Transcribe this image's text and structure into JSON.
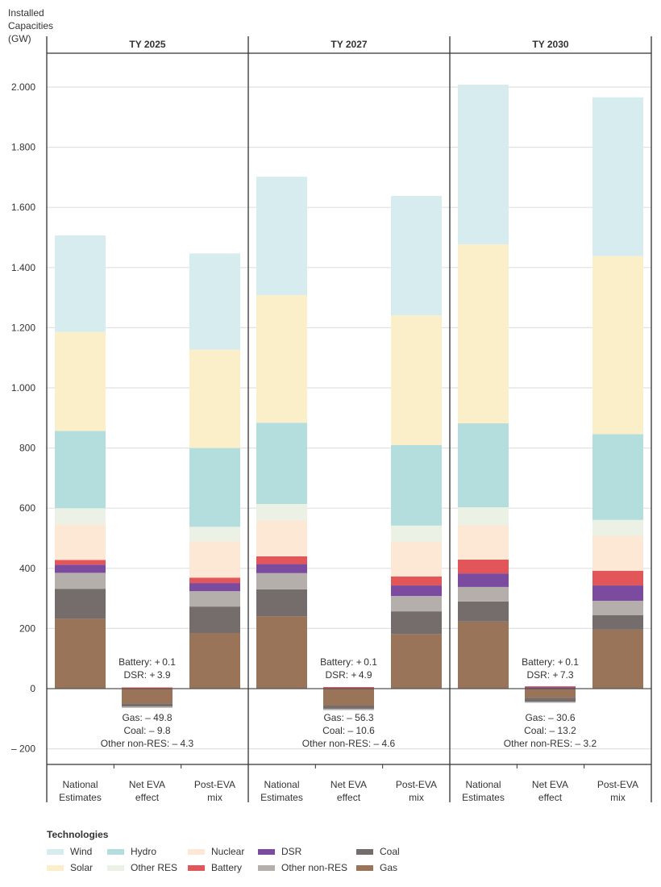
{
  "chart_data": {
    "type": "bar",
    "stacked": true,
    "ylabel": "Installed Capacities (GW)",
    "ylim": [
      -250,
      2100
    ],
    "yticks": [
      -200,
      0,
      200,
      400,
      600,
      800,
      1000,
      1200,
      1400,
      1600,
      1800,
      2000
    ],
    "ytick_labels": [
      "– 200",
      "0",
      "200",
      "400",
      "600",
      "800",
      "1.000",
      "1.200",
      "1.400",
      "1.600",
      "1.800",
      "2.000"
    ],
    "grid": true,
    "panels": [
      "TY 2025",
      "TY 2027",
      "TY 2030"
    ],
    "categories": [
      "National Estimates",
      "Net EVA effect",
      "Post-EVA mix"
    ],
    "category_labels": [
      [
        "National",
        "Estimates"
      ],
      [
        "Net EVA",
        "effect"
      ],
      [
        "Post-EVA",
        "mix"
      ]
    ],
    "technologies": [
      "Gas",
      "Coal",
      "Other non-RES",
      "DSR",
      "Battery",
      "Nuclear",
      "Other RES",
      "Hydro",
      "Solar",
      "Wind"
    ],
    "colors": {
      "Wind": "#d7ecee",
      "Solar": "#fbefca",
      "Hydro": "#b3dedd",
      "Other RES": "#ebf1e5",
      "Nuclear": "#fde8d6",
      "Battery": "#e25558",
      "DSR": "#7a4b9e",
      "Other non-RES": "#b5afab",
      "Coal": "#746d6b",
      "Gas": "#9a7459"
    },
    "series": [
      {
        "panel": "TY 2025",
        "category": "National Estimates",
        "values": {
          "Gas": 233,
          "Coal": 99,
          "Other non-RES": 53,
          "DSR": 27,
          "Battery": 16,
          "Nuclear": 118,
          "Other RES": 54,
          "Hydro": 257,
          "Solar": 329,
          "Wind": 321
        }
      },
      {
        "panel": "TY 2025",
        "category": "Net EVA effect",
        "values": {
          "Gas": -49.8,
          "Coal": -9.8,
          "Other non-RES": -4.3,
          "DSR": 3.9,
          "Battery": 0.1
        }
      },
      {
        "panel": "TY 2025",
        "category": "Post-EVA mix",
        "values": {
          "Gas": 185,
          "Coal": 88,
          "Other non-RES": 51,
          "DSR": 27,
          "Battery": 18,
          "Nuclear": 121,
          "Other RES": 48,
          "Hydro": 262,
          "Solar": 327,
          "Wind": 320
        }
      },
      {
        "panel": "TY 2027",
        "category": "National Estimates",
        "values": {
          "Gas": 241,
          "Coal": 89,
          "Other non-RES": 54,
          "DSR": 30,
          "Battery": 26,
          "Nuclear": 119,
          "Other RES": 55,
          "Hydro": 270,
          "Solar": 424,
          "Wind": 394
        }
      },
      {
        "panel": "TY 2027",
        "category": "Net EVA effect",
        "values": {
          "Gas": -56.3,
          "Coal": -10.6,
          "Other non-RES": -4.6,
          "DSR": 4.9,
          "Battery": 0.1
        }
      },
      {
        "panel": "TY 2027",
        "category": "Post-EVA mix",
        "values": {
          "Gas": 182,
          "Coal": 75,
          "Other non-RES": 51,
          "DSR": 35,
          "Battery": 30,
          "Nuclear": 115,
          "Other RES": 54,
          "Hydro": 268,
          "Solar": 431,
          "Wind": 397
        }
      },
      {
        "panel": "TY 2030",
        "category": "National Estimates",
        "values": {
          "Gas": 223,
          "Coal": 67,
          "Other non-RES": 48,
          "DSR": 45,
          "Battery": 46,
          "Nuclear": 115,
          "Other RES": 59,
          "Hydro": 279,
          "Solar": 595,
          "Wind": 531
        }
      },
      {
        "panel": "TY 2030",
        "category": "Net EVA effect",
        "values": {
          "Gas": -30.6,
          "Coal": -13.2,
          "Other non-RES": -3.2,
          "DSR": 7.3,
          "Battery": 0.1
        }
      },
      {
        "panel": "TY 2030",
        "category": "Post-EVA mix",
        "values": {
          "Gas": 196,
          "Coal": 48,
          "Other non-RES": 48,
          "DSR": 51,
          "Battery": 49,
          "Nuclear": 116,
          "Other RES": 53,
          "Hydro": 285,
          "Solar": 592,
          "Wind": 528
        }
      }
    ],
    "annotations": [
      {
        "panel": "TY 2025",
        "positive": [
          "Battery: + 0.1",
          "DSR: + 3.9"
        ],
        "negative": [
          "Gas: – 49.8",
          "Coal: – 9.8",
          "Other non-RES: – 4.3"
        ]
      },
      {
        "panel": "TY 2027",
        "positive": [
          "Battery: + 0.1",
          "DSR: + 4.9"
        ],
        "negative": [
          "Gas: – 56.3",
          "Coal: – 10.6",
          "Other non-RES: – 4.6"
        ]
      },
      {
        "panel": "TY 2030",
        "positive": [
          "Battery: + 0.1",
          "DSR: + 7.3"
        ],
        "negative": [
          "Gas: – 30.6",
          "Coal: – 13.2",
          "Other non-RES: – 3.2"
        ]
      }
    ],
    "legend": {
      "title": "Technologies",
      "position": "bottom",
      "items": [
        "Wind",
        "Hydro",
        "Nuclear",
        "DSR",
        "Coal",
        "Solar",
        "Other RES",
        "Battery",
        "Other non-RES",
        "Gas"
      ]
    }
  }
}
